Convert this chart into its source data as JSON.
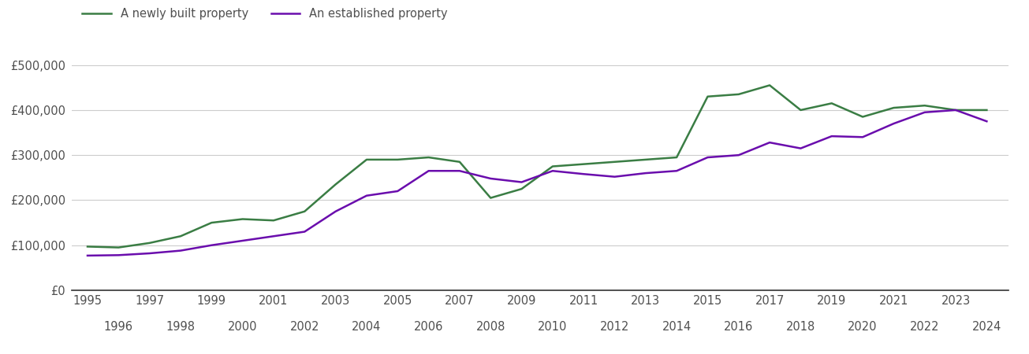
{
  "years": [
    1995,
    1996,
    1997,
    1998,
    1999,
    2000,
    2001,
    2002,
    2003,
    2004,
    2005,
    2006,
    2007,
    2008,
    2009,
    2010,
    2011,
    2012,
    2013,
    2014,
    2015,
    2016,
    2017,
    2018,
    2019,
    2020,
    2021,
    2022,
    2023,
    2024
  ],
  "new_build": [
    97000,
    95000,
    105000,
    120000,
    150000,
    158000,
    155000,
    175000,
    235000,
    290000,
    290000,
    295000,
    285000,
    205000,
    225000,
    275000,
    280000,
    285000,
    290000,
    295000,
    430000,
    435000,
    455000,
    400000,
    415000,
    385000,
    405000,
    410000,
    400000,
    400000
  ],
  "established": [
    77000,
    78000,
    82000,
    88000,
    100000,
    110000,
    120000,
    130000,
    175000,
    210000,
    220000,
    265000,
    265000,
    248000,
    240000,
    265000,
    258000,
    252000,
    260000,
    265000,
    295000,
    300000,
    328000,
    315000,
    342000,
    340000,
    370000,
    395000,
    400000,
    375000
  ],
  "new_build_color": "#3a7d44",
  "established_color": "#6a0dad",
  "new_build_label": "A newly built property",
  "established_label": "An established property",
  "ylim": [
    0,
    550000
  ],
  "yticks": [
    0,
    100000,
    200000,
    300000,
    400000,
    500000
  ],
  "ytick_labels": [
    "£0",
    "£100,000",
    "£200,000",
    "£300,000",
    "£400,000",
    "£500,000"
  ],
  "xticks_odd": [
    1995,
    1997,
    1999,
    2001,
    2003,
    2005,
    2007,
    2009,
    2011,
    2013,
    2015,
    2017,
    2019,
    2021,
    2023
  ],
  "xticks_even": [
    1996,
    1998,
    2000,
    2002,
    2004,
    2006,
    2008,
    2010,
    2012,
    2014,
    2016,
    2018,
    2020,
    2022,
    2024
  ],
  "background_color": "#ffffff",
  "grid_color": "#cccccc",
  "line_width": 1.8,
  "font_color": "#505050",
  "font_size": 10.5
}
